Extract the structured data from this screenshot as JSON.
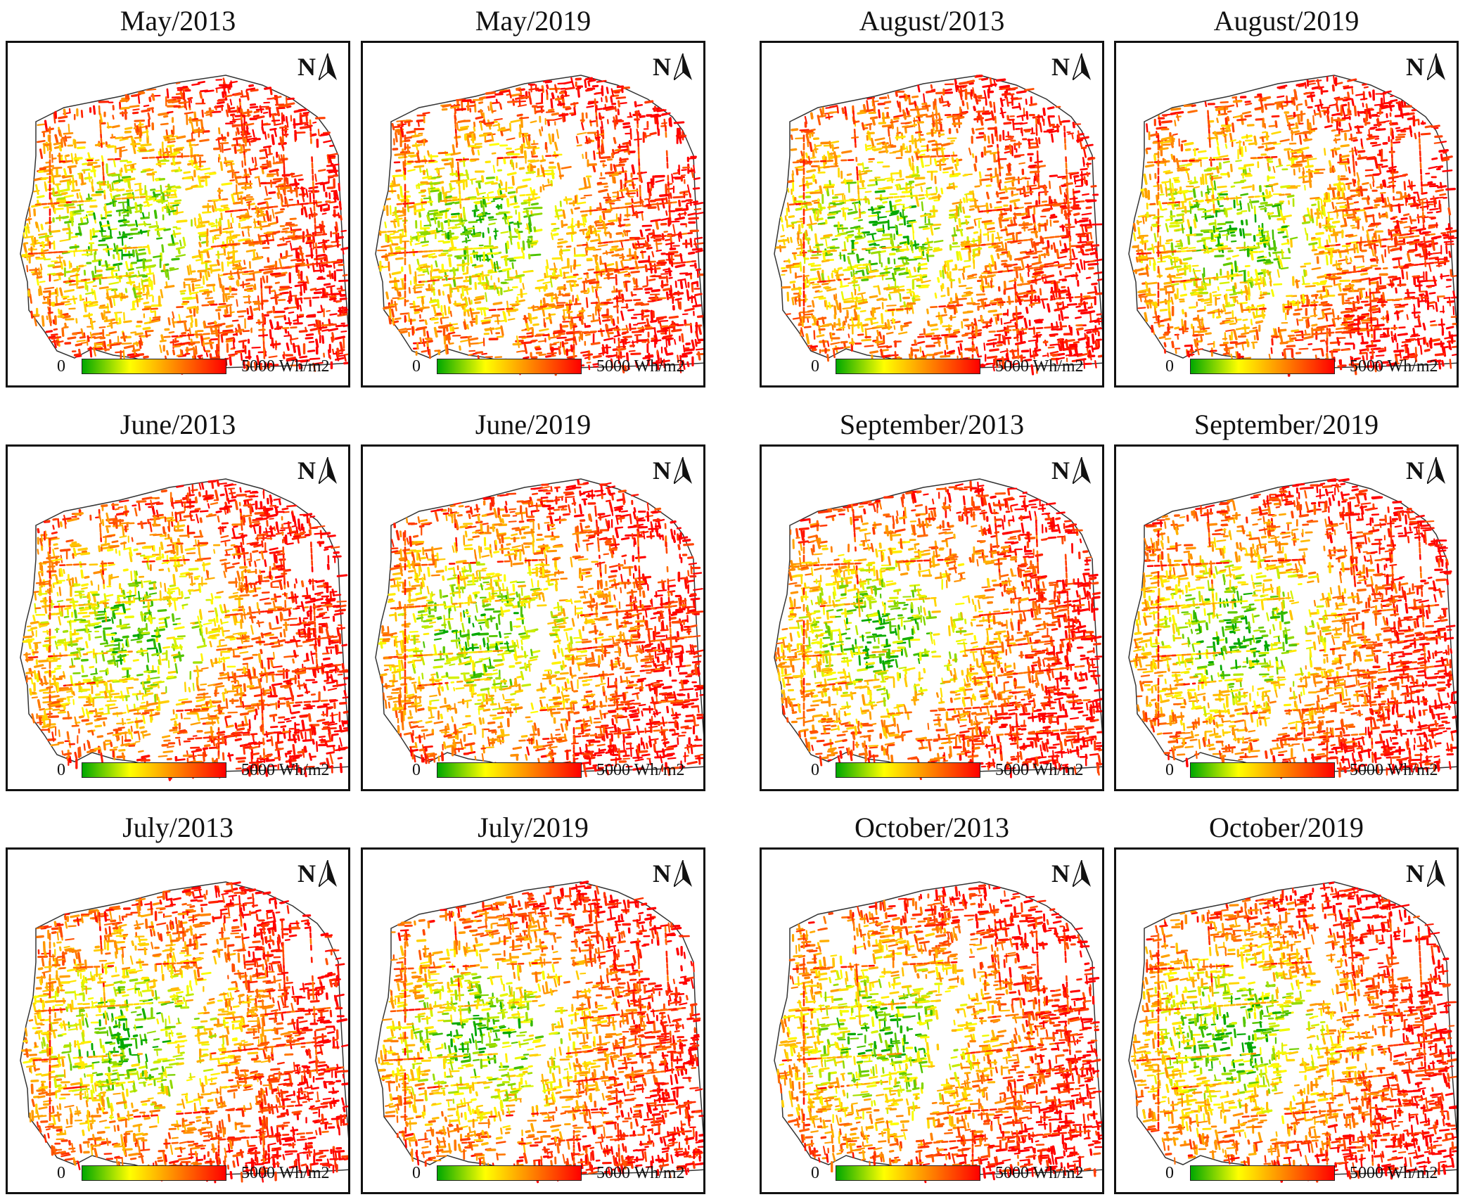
{
  "figure": {
    "legend": {
      "min_label": "0",
      "max_label": "5000 Wh/m2",
      "min_value": 0,
      "max_value": 5000,
      "unit": "Wh/m2",
      "colors": [
        "#00a800",
        "#ffff00",
        "#ff8000",
        "#ff0000"
      ]
    },
    "north_arrow": {
      "letter": "N"
    },
    "colors": {
      "frame": "#111111",
      "boundary": "#333333",
      "background": "#ffffff"
    }
  },
  "panels": [
    {
      "title": "May/2013"
    },
    {
      "title": "May/2019"
    },
    {
      "title": "August/2013"
    },
    {
      "title": "August/2019"
    },
    {
      "title": "June/2013"
    },
    {
      "title": "June/2019"
    },
    {
      "title": "September/2013"
    },
    {
      "title": "September/2019"
    },
    {
      "title": "July/2013"
    },
    {
      "title": "July/2019"
    },
    {
      "title": "October/2013"
    },
    {
      "title": "October/2019"
    }
  ]
}
